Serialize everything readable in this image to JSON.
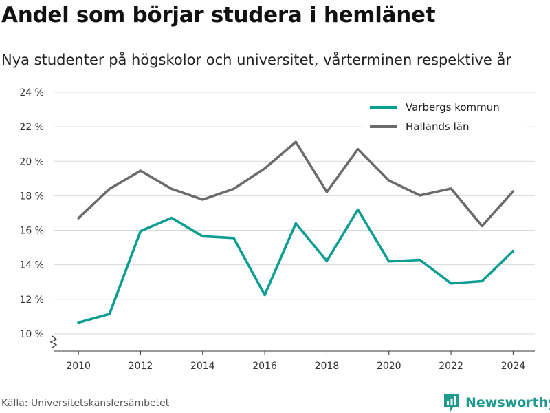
{
  "title": "Andel som börjar studera i hemlänet",
  "subtitle": "Nya studenter på högskolor och universitet, vårterminen respektive år",
  "source": "Källa: Universitetskanslersämbetet",
  "brand": {
    "name": "Newsworthy",
    "logo_icon": "bar-chart-logo-icon",
    "color": "#1f9a8e"
  },
  "chart_data": {
    "type": "line",
    "x": [
      2010,
      2011,
      2012,
      2013,
      2014,
      2015,
      2016,
      2017,
      2018,
      2019,
      2020,
      2021,
      2022,
      2023,
      2024
    ],
    "xticks": [
      2010,
      2012,
      2014,
      2016,
      2018,
      2020,
      2022,
      2024
    ],
    "yticks": [
      10,
      12,
      14,
      16,
      18,
      20,
      22,
      24
    ],
    "ytick_labels": [
      "10 %",
      "12 %",
      "14 %",
      "16 %",
      "18 %",
      "20 %",
      "22 %",
      "24 %"
    ],
    "ylim": [
      9.0,
      24.0
    ],
    "y_axis_break": true,
    "grid": "horizontal",
    "legend_position": "top-right",
    "xlabel": "",
    "ylabel": "",
    "series": [
      {
        "name": "Varbergs kommun",
        "color": "#0a9e92",
        "values": [
          10.65,
          11.15,
          15.95,
          16.72,
          15.65,
          15.55,
          12.25,
          16.4,
          14.22,
          17.2,
          14.2,
          14.28,
          12.92,
          13.05,
          14.8
        ]
      },
      {
        "name": "Hallands län",
        "color": "#6b6b6f",
        "values": [
          16.7,
          18.4,
          19.45,
          18.4,
          17.78,
          18.4,
          19.58,
          21.12,
          18.22,
          20.7,
          18.88,
          18.02,
          18.42,
          16.25,
          18.25
        ]
      }
    ]
  }
}
